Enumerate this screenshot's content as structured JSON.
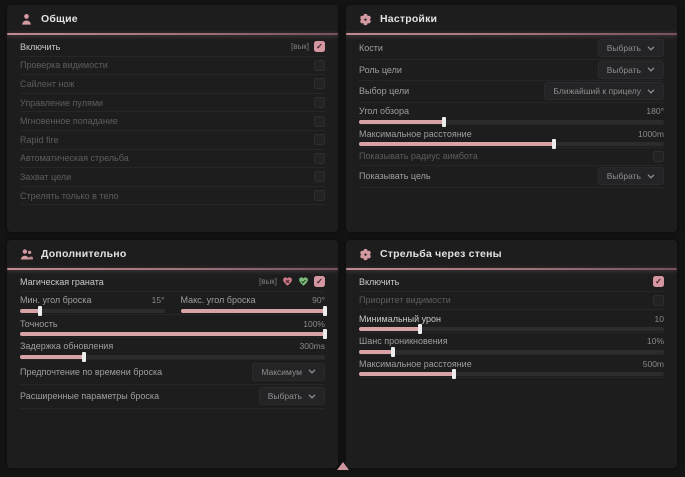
{
  "colors": {
    "accent": "#d59aa1",
    "accent_green": "#7cbd7e",
    "panel_bg": "#1d1d1e",
    "page_bg": "#141414"
  },
  "panels": [
    {
      "title": "Общие",
      "icon": "person-icon",
      "rows": [
        {
          "type": "checkbox",
          "label": "Включить",
          "tag": "[вык]",
          "checked": true
        },
        {
          "type": "checkbox",
          "label": "Проверка видимости",
          "checked": false
        },
        {
          "type": "checkbox",
          "label": "Сайлент нож",
          "checked": false
        },
        {
          "type": "checkbox",
          "label": "Управление пулями",
          "checked": false
        },
        {
          "type": "checkbox",
          "label": "Мгновенное попадание",
          "checked": false
        },
        {
          "type": "checkbox",
          "label": "Rapid fire",
          "checked": false
        },
        {
          "type": "checkbox",
          "label": "Автоматическая стрельба",
          "checked": false
        },
        {
          "type": "checkbox",
          "label": "Захват цели",
          "checked": false
        },
        {
          "type": "checkbox",
          "label": "Стрелять только в тело",
          "checked": false
        }
      ]
    },
    {
      "title": "Настройки",
      "icon": "gear-flower-icon",
      "rows": [
        {
          "type": "dropdown",
          "label": "Кости",
          "value": "Выбрать"
        },
        {
          "type": "dropdown",
          "label": "Роль цели",
          "value": "Выбрать"
        },
        {
          "type": "dropdown",
          "label": "Выбор цели",
          "value": "Ближайший к прицелу"
        },
        {
          "type": "slider",
          "label": "Угол обзора",
          "value": "180°",
          "fill": 28
        },
        {
          "type": "slider",
          "label": "Максимальное расстояние",
          "value": "1000m",
          "fill": 64
        },
        {
          "type": "checkbox",
          "label": "Показывать радиус аимбота",
          "checked": false
        },
        {
          "type": "dropdown",
          "label": "Показывать цель",
          "value": "Выбрать"
        }
      ]
    },
    {
      "title": "Дополнительно",
      "icon": "people-icon",
      "rows": [
        {
          "type": "checkbox",
          "label": "Магическая граната",
          "tag": "[вык]",
          "checked": true,
          "icons": [
            "broken-heart-icon",
            "green-heart-icon"
          ]
        },
        {
          "type": "slider-pair",
          "sliders": [
            {
              "label": "Мин. угол броска",
              "value": "15°",
              "fill": 14
            },
            {
              "label": "Макс. угол броска",
              "value": "90°",
              "fill": 100
            }
          ]
        },
        {
          "type": "slider",
          "label": "Точность",
          "value": "100%",
          "fill": 100
        },
        {
          "type": "slider",
          "label": "Задержка обновления",
          "value": "300ms",
          "fill": 21
        },
        {
          "type": "dropdown",
          "label": "Предпочтение по времени броска",
          "value": "Максимум"
        },
        {
          "type": "dropdown",
          "label": "Расширенные параметры броска",
          "value": "Выбрать"
        }
      ]
    },
    {
      "title": "Стрельба через стены",
      "icon": "flower-icon",
      "rows": [
        {
          "type": "checkbox",
          "label": "Включить",
          "checked": true
        },
        {
          "type": "checkbox",
          "label": "Приоритет видимости",
          "checked": false
        },
        {
          "type": "slider",
          "label": "Минимальный урон",
          "value": "10",
          "fill": 20
        },
        {
          "type": "slider",
          "label": "Шанс проникновения",
          "value": "10%",
          "fill": 11
        },
        {
          "type": "slider",
          "label": "Максимальное расстояние",
          "value": "500m",
          "fill": 31
        }
      ]
    }
  ],
  "footer": {
    "scroll_indicator_icon": "triangle-up-icon"
  }
}
